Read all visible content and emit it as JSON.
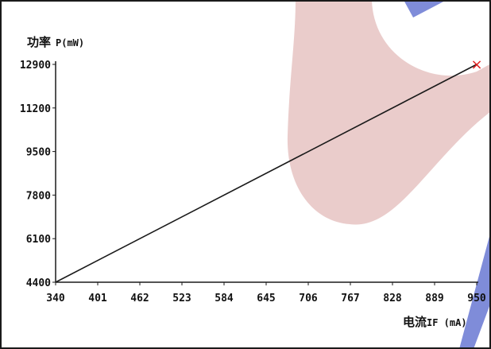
{
  "chart_data": {
    "type": "line",
    "ylabel_cn": "功率",
    "ylabel_unit": "P(mW)",
    "xlabel_cn": "电流",
    "xlabel_unit": "IF (mA)",
    "x_ticks": [
      "340",
      "401",
      "462",
      "523",
      "584",
      "645",
      "706",
      "767",
      "828",
      "889",
      "950"
    ],
    "y_ticks": [
      "4400",
      "6100",
      "7800",
      "9500",
      "11200",
      "12900"
    ],
    "xlim": [
      340,
      950
    ],
    "ylim": [
      4400,
      12900
    ],
    "series": [
      {
        "x": [
          340,
          950
        ],
        "y": [
          4400,
          12900
        ],
        "color": "#1a1a1a"
      }
    ],
    "end_marker": {
      "x": 950,
      "y": 12900,
      "symbol": "×",
      "color": "#e02020"
    },
    "grid": false,
    "legend": "none",
    "watermark_colors": {
      "red": "#d8a3a0",
      "blue": "#5f6fd0"
    }
  }
}
